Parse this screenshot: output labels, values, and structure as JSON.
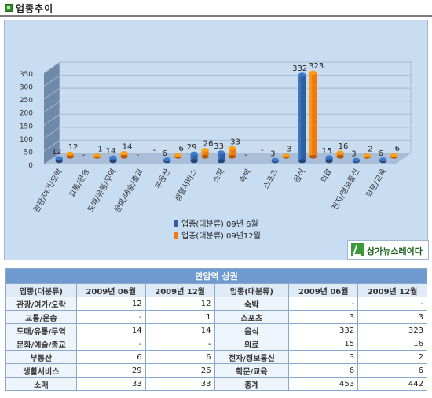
{
  "header": {
    "title": "업종추이"
  },
  "badge": {
    "text": "상가뉴스레이다"
  },
  "chart_data": {
    "type": "bar",
    "title": "",
    "xlabel": "",
    "ylabel": "",
    "ylim": [
      0,
      350
    ],
    "yticks": [
      0,
      50,
      100,
      150,
      200,
      250,
      300,
      350
    ],
    "grid": true,
    "legend_position": "bottom",
    "categories": [
      "관광/여가/오락",
      "교통/운송",
      "도매/유통/무역",
      "문화/예술/종교",
      "부동산",
      "생활서비스",
      "소매",
      "숙박",
      "스포츠",
      "음식",
      "의료",
      "전자/정보통신",
      "학문/교육"
    ],
    "series": [
      {
        "name": "업종(대분류) 09년 6월",
        "color": "#2f5f9e",
        "values": [
          12,
          null,
          14,
          null,
          6,
          29,
          33,
          null,
          3,
          332,
          15,
          3,
          6
        ],
        "labels": [
          "12",
          "-",
          "14",
          "-",
          "6",
          "29",
          "33",
          "-",
          "3",
          "332",
          "15",
          "3",
          "6"
        ]
      },
      {
        "name": "업종(대분류) 09년12월",
        "color": "#f07a10",
        "values": [
          12,
          1,
          14,
          null,
          6,
          26,
          33,
          null,
          3,
          323,
          16,
          2,
          6
        ],
        "labels": [
          "12",
          "1",
          "14",
          "-",
          "6",
          "26",
          "33",
          "-",
          "3",
          "323",
          "16",
          "2",
          "6"
        ]
      }
    ]
  },
  "table": {
    "caption": "안암역 상권",
    "headers": [
      "업종(대분류)",
      "2009년 06월",
      "2009년 12월",
      "업종(대분류)",
      "2009년 06월",
      "2009년 12월"
    ],
    "rows": [
      [
        "관광/여가/오락",
        "12",
        "12",
        "숙박",
        "-",
        "-"
      ],
      [
        "교통/운송",
        "-",
        "1",
        "스포츠",
        "3",
        "3"
      ],
      [
        "도매/유통/무역",
        "14",
        "14",
        "음식",
        "332",
        "323"
      ],
      [
        "문화/예술/종교",
        "-",
        "-",
        "의료",
        "15",
        "16"
      ],
      [
        "부동산",
        "6",
        "6",
        "전자/정보통신",
        "3",
        "2"
      ],
      [
        "생활서비스",
        "29",
        "26",
        "학문/교육",
        "6",
        "6"
      ],
      [
        "소매",
        "33",
        "33",
        "총계",
        "453",
        "442"
      ]
    ]
  }
}
